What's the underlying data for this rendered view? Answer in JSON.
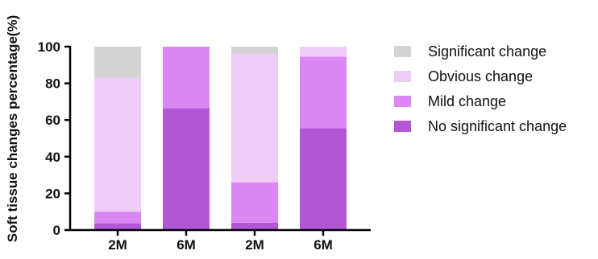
{
  "chart_data": {
    "type": "bar",
    "stacked": true,
    "categories": [
      "2M",
      "6M",
      "2M",
      "6M"
    ],
    "series": [
      {
        "name": "No significant change",
        "color": "#b356d6",
        "values": [
          3.5,
          66.5,
          4,
          55.5
        ]
      },
      {
        "name": "Mild change",
        "color": "#da87f2",
        "values": [
          6.5,
          33.5,
          22,
          39
        ]
      },
      {
        "name": "Obvious change",
        "color": "#efcbf7",
        "values": [
          73,
          0,
          70,
          5.5
        ]
      },
      {
        "name": "Significant change",
        "color": "#d4d4d4",
        "values": [
          17,
          0,
          4,
          0
        ]
      }
    ],
    "title": "",
    "xlabel": "",
    "ylabel": "Soft tissue changes percentage(%)",
    "ylim": [
      0,
      100
    ],
    "yticks": [
      0,
      20,
      40,
      60,
      80,
      100
    ],
    "grid": false,
    "legend_position": "right"
  }
}
